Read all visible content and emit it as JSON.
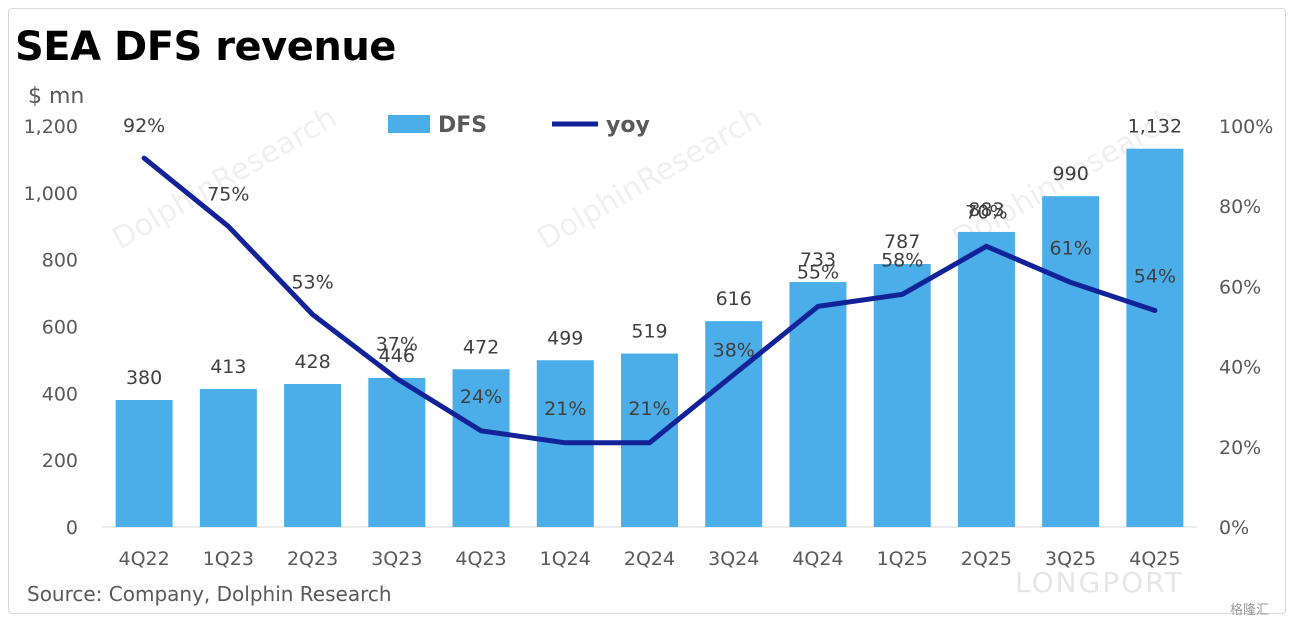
{
  "title": "SEA DFS revenue",
  "unit_label": "$ mn",
  "source": "Source: Company, Dolphin Research",
  "watermark": {
    "text": "DolphinResearch",
    "brand": "LONGPORT",
    "corner": "格隆汇"
  },
  "colors": {
    "bar": "#4baee8",
    "line": "#12239a"
  },
  "chart_data": {
    "type": "bar",
    "categories": [
      "4Q22",
      "1Q23",
      "2Q23",
      "3Q23",
      "4Q23",
      "1Q24",
      "2Q24",
      "3Q24",
      "4Q24",
      "1Q25",
      "2Q25",
      "3Q25",
      "4Q25"
    ],
    "series": [
      {
        "name": "DFS",
        "type": "bar",
        "axis": "left",
        "values": [
          380,
          413,
          428,
          446,
          472,
          499,
          519,
          616,
          733,
          787,
          883,
          990,
          1132
        ],
        "labels": [
          "380",
          "413",
          "428",
          "446",
          "472",
          "499",
          "519",
          "616",
          "733",
          "787",
          "883",
          "990",
          "1,132"
        ]
      },
      {
        "name": "yoy",
        "type": "line",
        "axis": "right",
        "values": [
          92,
          75,
          53,
          37,
          24,
          21,
          21,
          38,
          55,
          58,
          70,
          61,
          54
        ],
        "labels": [
          "92%",
          "75%",
          "53%",
          "37%",
          "24%",
          "21%",
          "21%",
          "38%",
          "55%",
          "58%",
          "70%",
          "61%",
          "54%"
        ]
      }
    ],
    "ylim": [
      0,
      1200
    ],
    "yticks": [
      "0",
      "200",
      "400",
      "600",
      "800",
      "1,000",
      "1,200"
    ],
    "y2lim": [
      0,
      100
    ],
    "y2ticks": [
      "0%",
      "20%",
      "40%",
      "60%",
      "80%",
      "100%"
    ],
    "legend": {
      "placement": "top-center",
      "entries": [
        "DFS",
        "yoy"
      ]
    },
    "grid": false
  }
}
